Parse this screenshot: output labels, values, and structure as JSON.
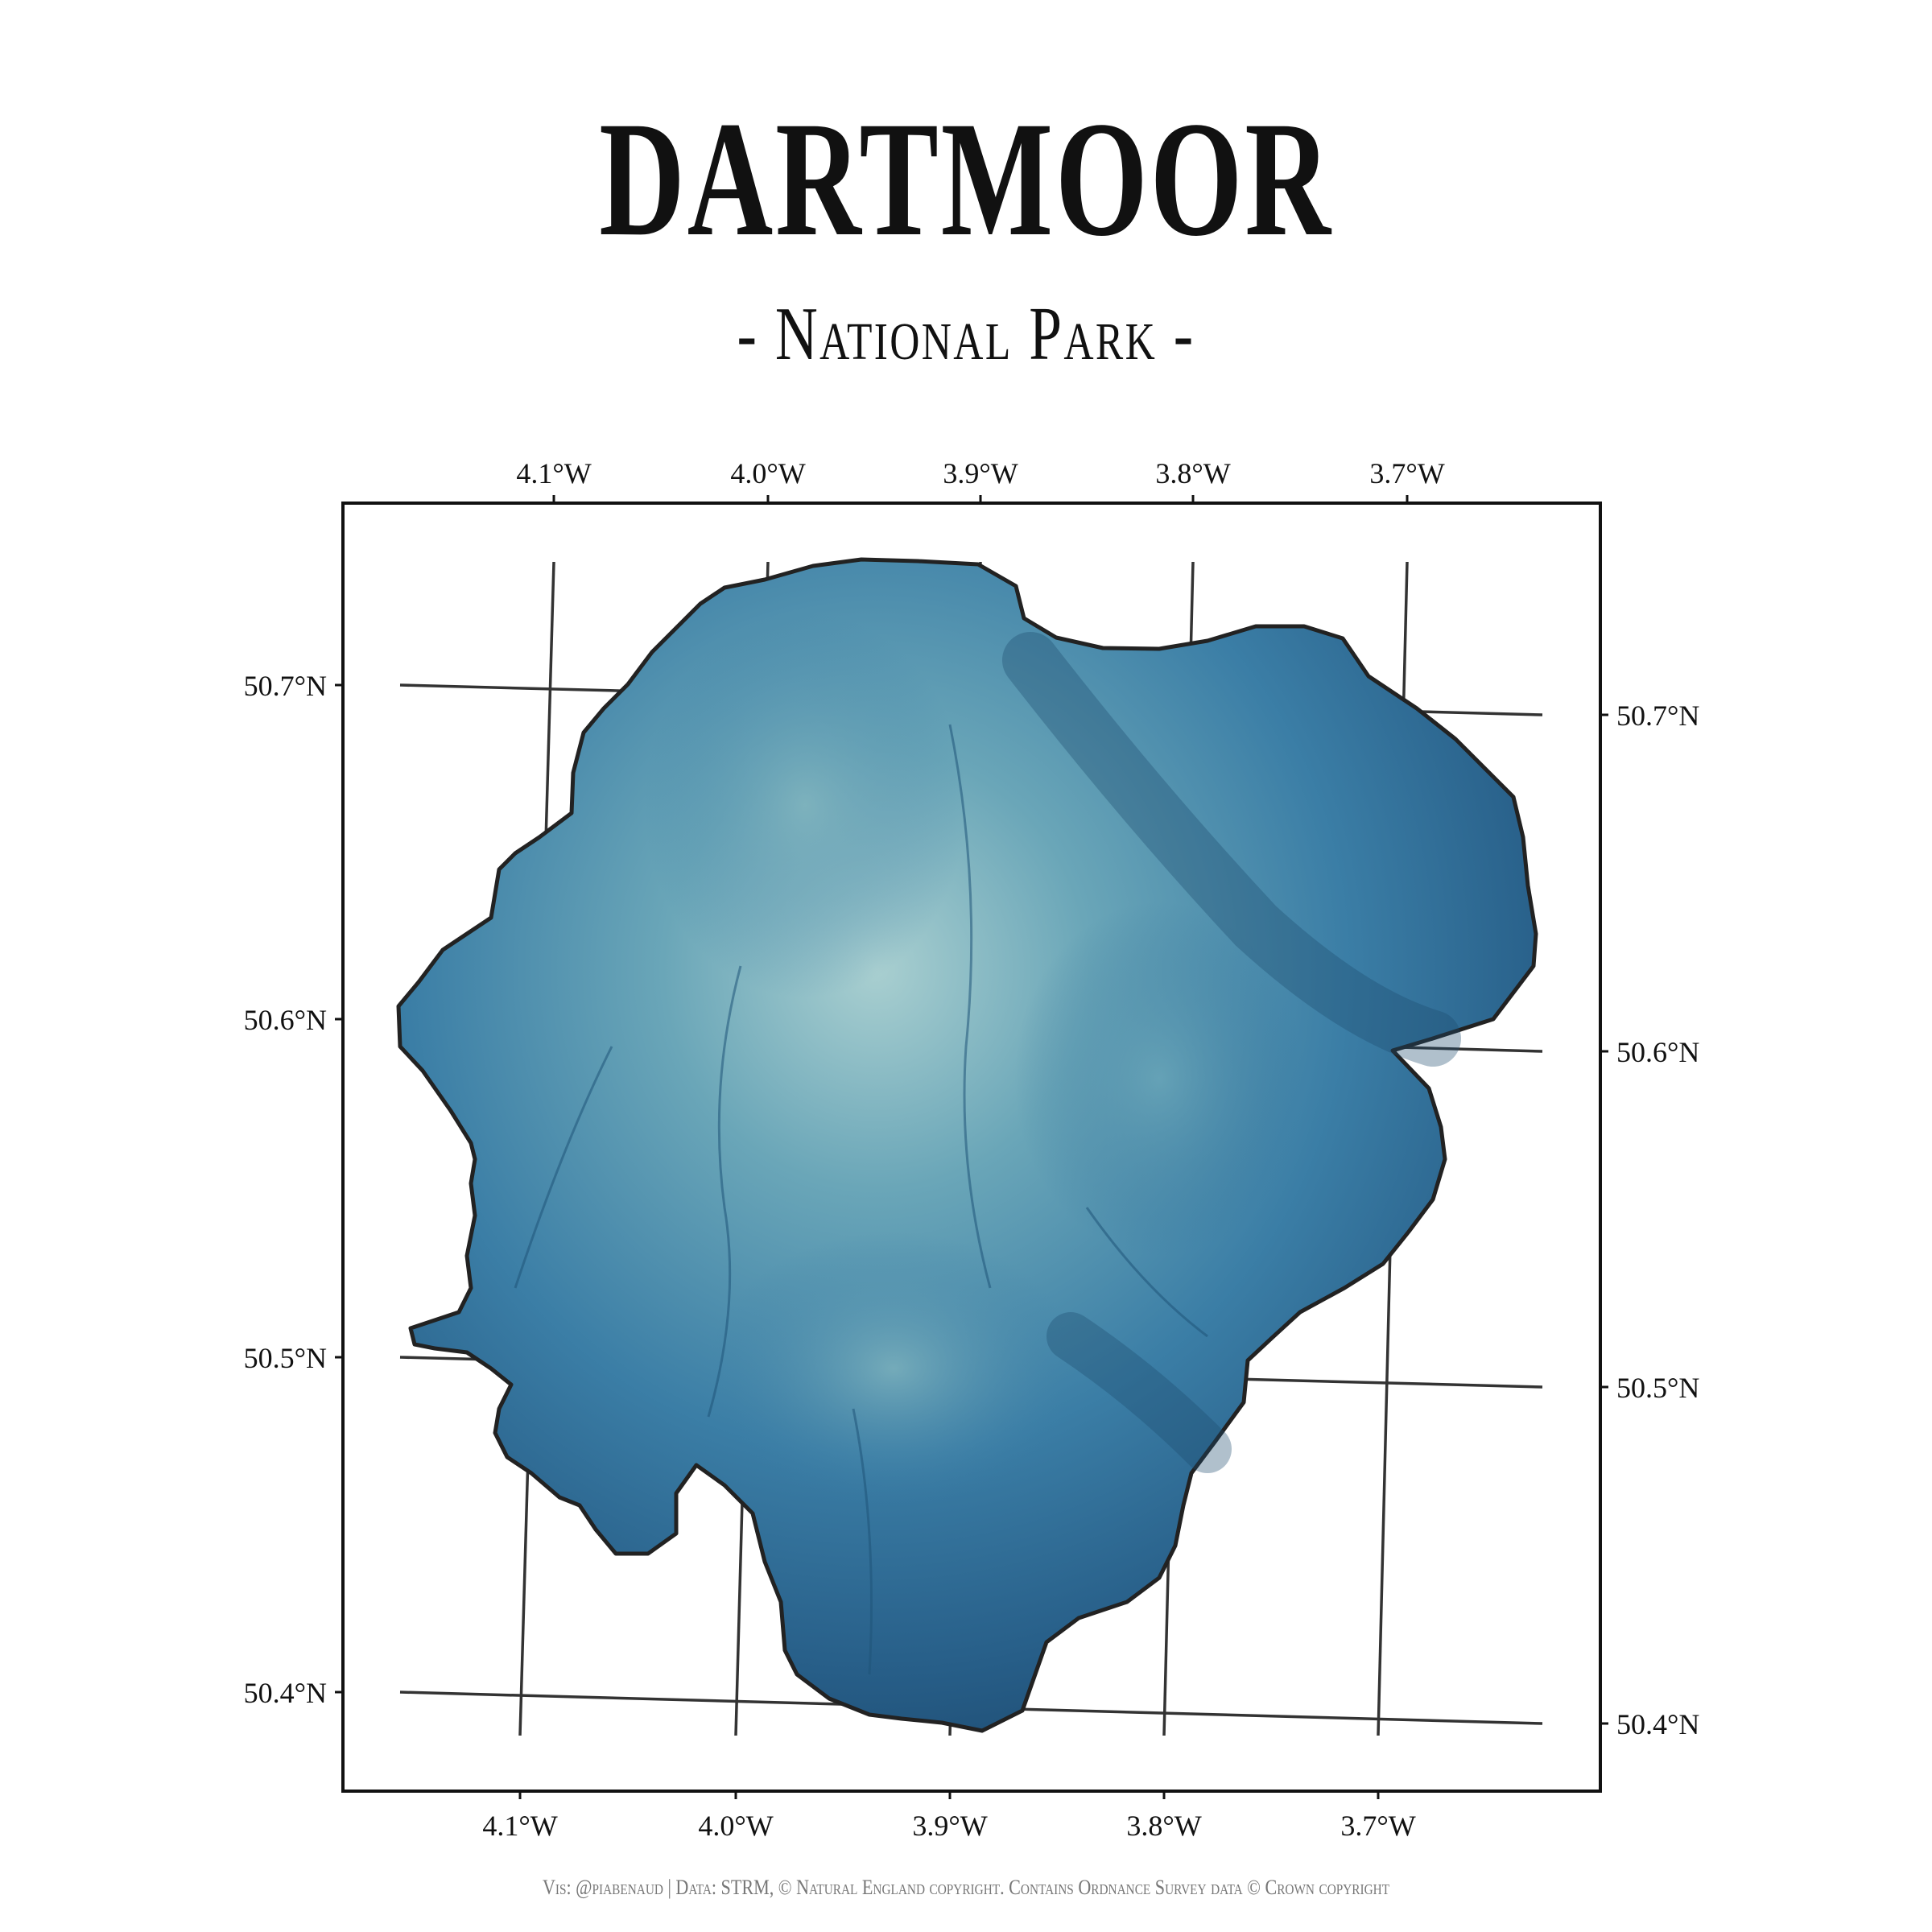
{
  "title": "DARTMOOR",
  "subtitle": "- National Park -",
  "caption": "Vis: @piabenaud | Data: STRM, © Natural England copyright. Contains Ordnance Survey data © Crown copyright",
  "map": {
    "region": "Dartmoor National Park",
    "fill_gradient": [
      "#9ec8cc",
      "#5a9bb3",
      "#2f6f99",
      "#1c4a6e"
    ],
    "outline_color": "#222222",
    "graticule_color": "#333333",
    "lon_labels": [
      "4.1°W",
      "4.0°W",
      "3.9°W",
      "3.8°W",
      "3.7°W"
    ],
    "lat_labels": [
      "50.7°N",
      "50.6°N",
      "50.5°N",
      "50.4°N"
    ]
  }
}
